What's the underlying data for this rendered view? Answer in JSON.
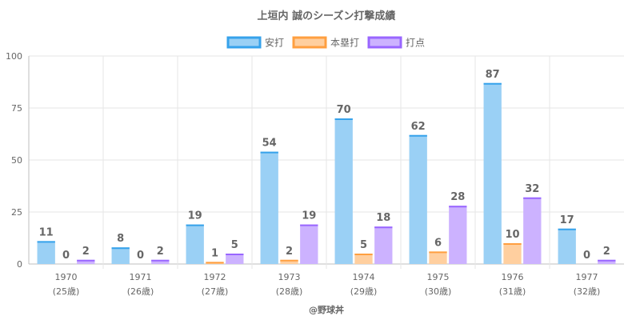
{
  "chart_data": {
    "type": "bar",
    "title": "上垣内 誠のシーズン打撃成績",
    "categories": [
      "1970",
      "1971",
      "1972",
      "1973",
      "1974",
      "1975",
      "1976",
      "1977"
    ],
    "category_sublabels": [
      "(25歳)",
      "(26歳)",
      "(27歳)",
      "(28歳)",
      "(29歳)",
      "(30歳)",
      "(31歳)",
      "(32歳)"
    ],
    "series": [
      {
        "name": "安打",
        "color": "#9ad0f5",
        "border": "#36a2eb",
        "values": [
          11,
          8,
          19,
          54,
          70,
          62,
          87,
          17
        ]
      },
      {
        "name": "本塁打",
        "color": "#ffcf9f",
        "border": "#ff9f40",
        "values": [
          0,
          0,
          1,
          2,
          5,
          6,
          10,
          0
        ]
      },
      {
        "name": "打点",
        "color": "#ccb2ff",
        "border": "#9966ff",
        "values": [
          2,
          2,
          5,
          19,
          18,
          28,
          32,
          2
        ]
      }
    ],
    "ylim": [
      0,
      100
    ],
    "y_ticks": [
      0,
      25,
      50,
      75,
      100
    ],
    "grid": true,
    "legend_position": "top-center"
  },
  "credit": "@野球丼"
}
